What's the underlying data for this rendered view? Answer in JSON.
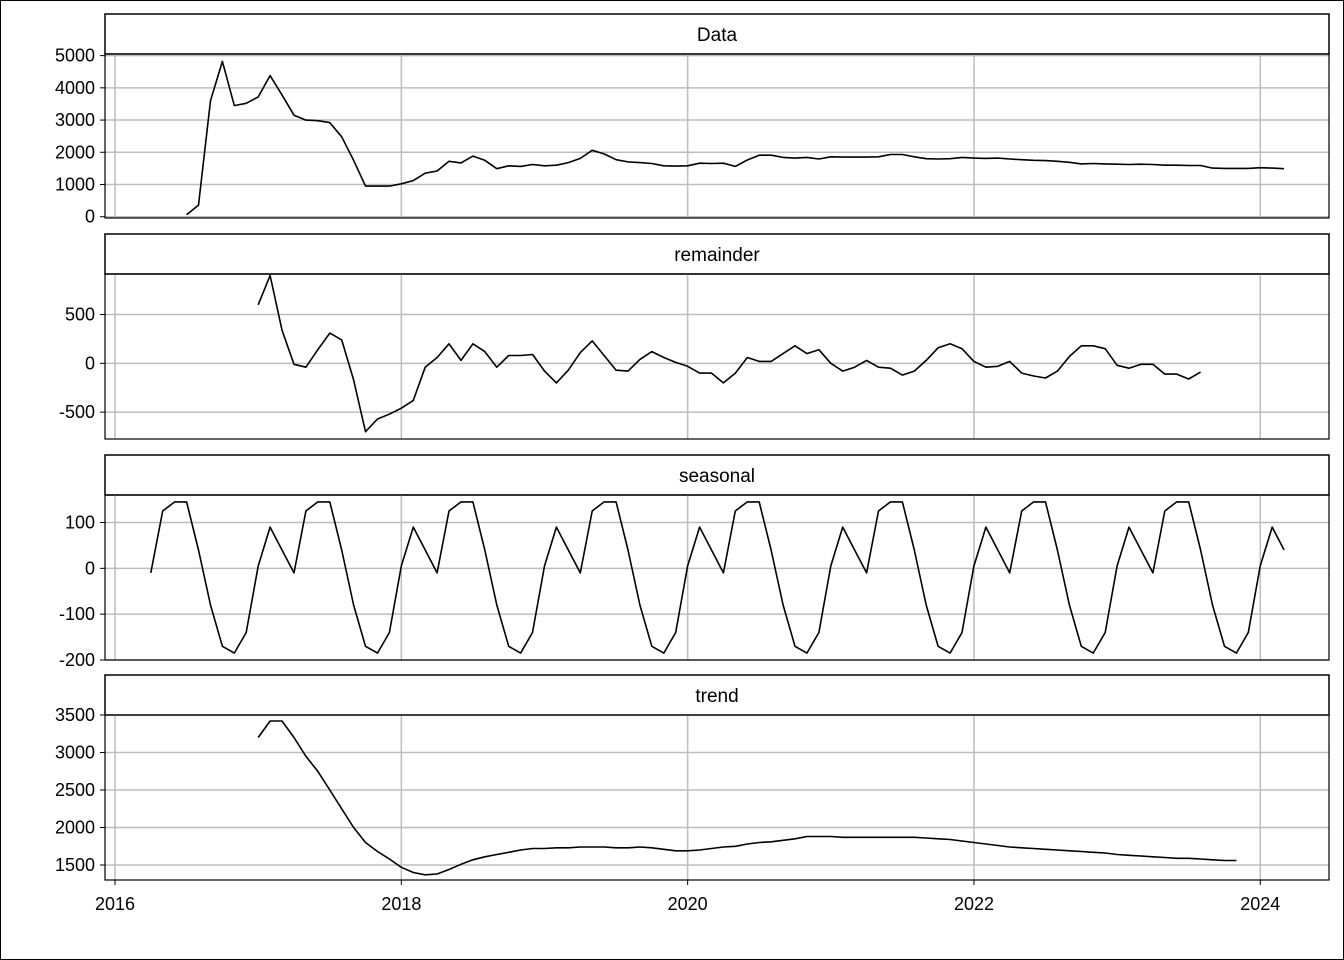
{
  "chart_data": {
    "type": "line",
    "layout": "stacked facets sharing x axis",
    "grid": true,
    "x_axis": {
      "range": [
        2015.93,
        2024.48
      ],
      "ticks": [
        2016,
        2018,
        2020,
        2022,
        2024
      ],
      "tick_labels": [
        "2016",
        "2018",
        "2020",
        "2022",
        "2024"
      ]
    },
    "panels": [
      {
        "label": "Data",
        "y_range": [
          -40,
          5050
        ],
        "y_ticks": [
          0,
          1000,
          2000,
          3000,
          4000,
          5000
        ],
        "y_tick_labels": [
          "0",
          "1000",
          "2000",
          "3000",
          "4000",
          "5000"
        ],
        "x_start": 2016.5,
        "x_step": 0.08333,
        "values": [
          60,
          360,
          3600,
          4820,
          3450,
          3520,
          3720,
          4380,
          3780,
          3150,
          3000,
          2980,
          2920,
          2480,
          1750,
          950,
          950,
          950,
          1020,
          1120,
          1350,
          1420,
          1720,
          1670,
          1880,
          1750,
          1490,
          1580,
          1560,
          1620,
          1580,
          1600,
          1680,
          1810,
          2060,
          1950,
          1770,
          1700,
          1680,
          1650,
          1580,
          1570,
          1580,
          1660,
          1650,
          1660,
          1560,
          1760,
          1910,
          1910,
          1840,
          1820,
          1840,
          1790,
          1860,
          1850,
          1850,
          1850,
          1860,
          1930,
          1930,
          1860,
          1800,
          1790,
          1800,
          1840,
          1820,
          1810,
          1820,
          1790,
          1770,
          1750,
          1740,
          1720,
          1690,
          1640,
          1650,
          1640,
          1630,
          1620,
          1630,
          1620,
          1600,
          1600,
          1590,
          1590,
          1510,
          1500,
          1500,
          1500,
          1520,
          1510,
          1490
        ]
      },
      {
        "label": "remainder",
        "y_range": [
          -775,
          915
        ],
        "y_ticks": [
          -500,
          0,
          500
        ],
        "y_tick_labels": [
          "-500",
          "0",
          "500"
        ],
        "x_start": 2017.0,
        "x_step": 0.08333,
        "values": [
          600,
          900,
          340,
          -10,
          -40,
          140,
          310,
          240,
          -170,
          -700,
          -570,
          -520,
          -460,
          -380,
          -40,
          60,
          200,
          30,
          200,
          120,
          -40,
          80,
          80,
          90,
          -80,
          -200,
          -70,
          110,
          230,
          80,
          -70,
          -80,
          40,
          120,
          60,
          10,
          -30,
          -100,
          -100,
          -200,
          -100,
          60,
          20,
          20,
          100,
          180,
          100,
          140,
          0,
          -80,
          -40,
          30,
          -40,
          -50,
          -120,
          -80,
          30,
          160,
          200,
          150,
          20,
          -40,
          -30,
          20,
          -100,
          -130,
          -150,
          -80,
          70,
          180,
          180,
          150,
          -20,
          -50,
          -10,
          -10,
          -110,
          -110,
          -160,
          -90
        ]
      },
      {
        "label": "seasonal",
        "y_range": [
          -200,
          160
        ],
        "y_ticks": [
          -200,
          -100,
          0,
          100
        ],
        "y_tick_labels": [
          "-200",
          "-100",
          "0",
          "100"
        ],
        "x_start": 2016.25,
        "x_step": 0.08333,
        "cycle": [
          -10,
          125,
          145,
          145,
          40,
          -80,
          -170,
          -185,
          -140,
          5,
          90,
          40
        ],
        "periods": 8,
        "extra_points": 0
      },
      {
        "label": "trend",
        "y_range": [
          1300,
          3500
        ],
        "y_ticks": [
          1500,
          2000,
          2500,
          3000,
          3500
        ],
        "y_tick_labels": [
          "1500",
          "2000",
          "2500",
          "3000",
          "3500"
        ],
        "x_start": 2017.0,
        "x_step": 0.08333,
        "values": [
          3200,
          3420,
          3420,
          3200,
          2950,
          2750,
          2500,
          2250,
          2000,
          1800,
          1680,
          1580,
          1470,
          1400,
          1370,
          1380,
          1440,
          1510,
          1570,
          1610,
          1640,
          1670,
          1700,
          1720,
          1720,
          1730,
          1730,
          1740,
          1740,
          1740,
          1730,
          1730,
          1740,
          1730,
          1710,
          1690,
          1690,
          1700,
          1720,
          1740,
          1750,
          1780,
          1800,
          1810,
          1830,
          1850,
          1880,
          1880,
          1880,
          1870,
          1870,
          1870,
          1870,
          1870,
          1870,
          1870,
          1860,
          1850,
          1840,
          1820,
          1800,
          1780,
          1760,
          1740,
          1730,
          1720,
          1710,
          1700,
          1690,
          1680,
          1670,
          1660,
          1640,
          1630,
          1620,
          1610,
          1600,
          1590,
          1590,
          1580,
          1570,
          1560,
          1560
        ]
      }
    ]
  }
}
